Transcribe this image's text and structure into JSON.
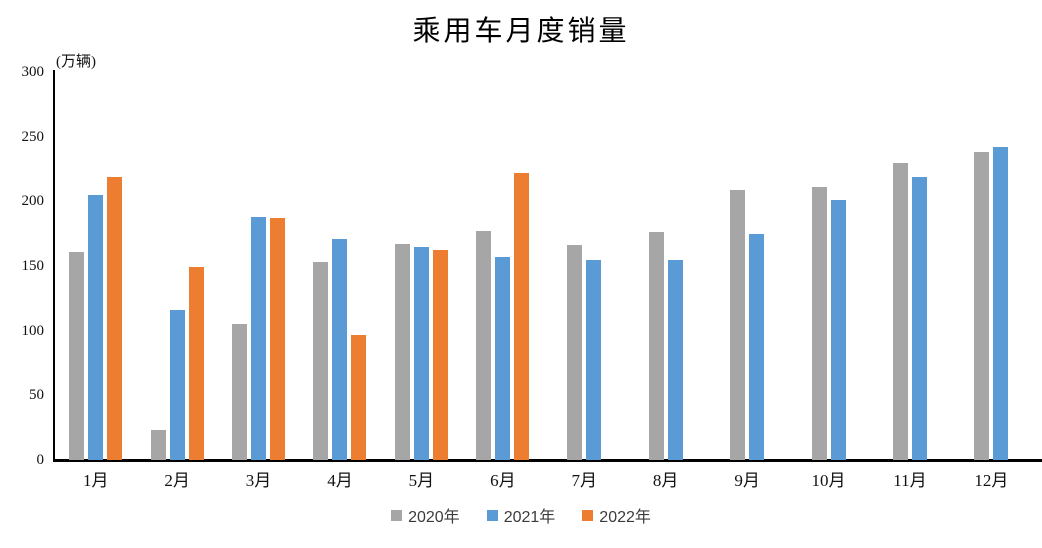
{
  "chart_data": {
    "type": "bar",
    "title": "乘用车月度销量",
    "ylabel": "(万辆)",
    "xlabel": "",
    "categories": [
      "1月",
      "2月",
      "3月",
      "4月",
      "5月",
      "6月",
      "7月",
      "8月",
      "9月",
      "10月",
      "11月",
      "12月"
    ],
    "series": [
      {
        "name": "2020年",
        "color": "#A6A6A6",
        "values": [
          161,
          23,
          105,
          153,
          167,
          177,
          166,
          176,
          209,
          211,
          230,
          238
        ]
      },
      {
        "name": "2021年",
        "color": "#5B9BD5",
        "values": [
          205,
          116,
          188,
          171,
          165,
          157,
          155,
          155,
          175,
          201,
          219,
          242
        ]
      },
      {
        "name": "2022年",
        "color": "#ED7D31",
        "values": [
          219,
          149,
          187,
          97,
          162,
          222,
          null,
          null,
          null,
          null,
          null,
          null
        ]
      }
    ],
    "ylim": [
      0,
      300
    ],
    "yticks": [
      0,
      50,
      100,
      150,
      200,
      250,
      300
    ],
    "grid": false,
    "legend_position": "bottom",
    "axis_color": "#000000",
    "background_color": "#FFFFFF"
  }
}
